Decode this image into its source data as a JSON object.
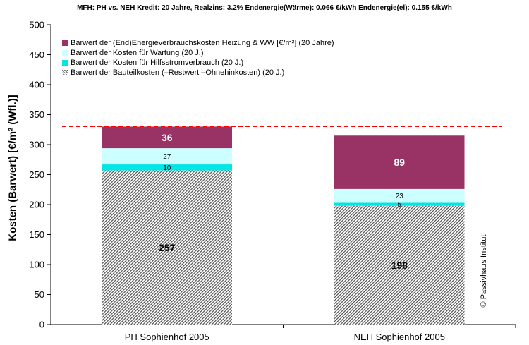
{
  "chart_data": {
    "type": "bar",
    "stacked": true,
    "subtitle": "MFH: PH vs. NEH   Kredit: 20 Jahre,   Realzins: 3.2%   Endenergie(Wärme): 0.066 €/kWh   Endenergie(el): 0.155 €/kWh",
    "ylabel": "Kosten (Barwert)  [€/m² (Wfl.)]",
    "xlabel": "",
    "categories": [
      "PH Sophienhof 2005",
      "NEH Sophienhof 2005"
    ],
    "ylim": [
      0,
      500
    ],
    "yticks": [
      0,
      50,
      100,
      150,
      200,
      250,
      300,
      350,
      400,
      450,
      500
    ],
    "grid": false,
    "legend_position": "top-left",
    "series": [
      {
        "name": "Barwert der Bauteilkosten (–Restwert –Ohnehinkosten)  (20 J.)",
        "values": [
          257,
          198
        ],
        "color": "#707070",
        "pattern": "hatch",
        "label_style": "large"
      },
      {
        "name": "Barwert der Kosten für  Hilfsstromverbrauch (20 J.)",
        "values": [
          10,
          5
        ],
        "color": "#00E5E5",
        "label_style": "small"
      },
      {
        "name": "Barwert der Kosten für  Wartung (20 J.)",
        "values": [
          27,
          23
        ],
        "color": "#CCFFFF",
        "label_style": "small"
      },
      {
        "name": "Barwert der (End)Energieverbrauchskosten Heizung & WW   [€/m²]  (20 Jahre)",
        "values": [
          36,
          89
        ],
        "color": "#993366",
        "label_style": "large"
      }
    ],
    "reference_line": {
      "value": 330,
      "color": "#FF0000",
      "style": "dashed"
    },
    "annotation": "© Passivhaus Institut"
  }
}
